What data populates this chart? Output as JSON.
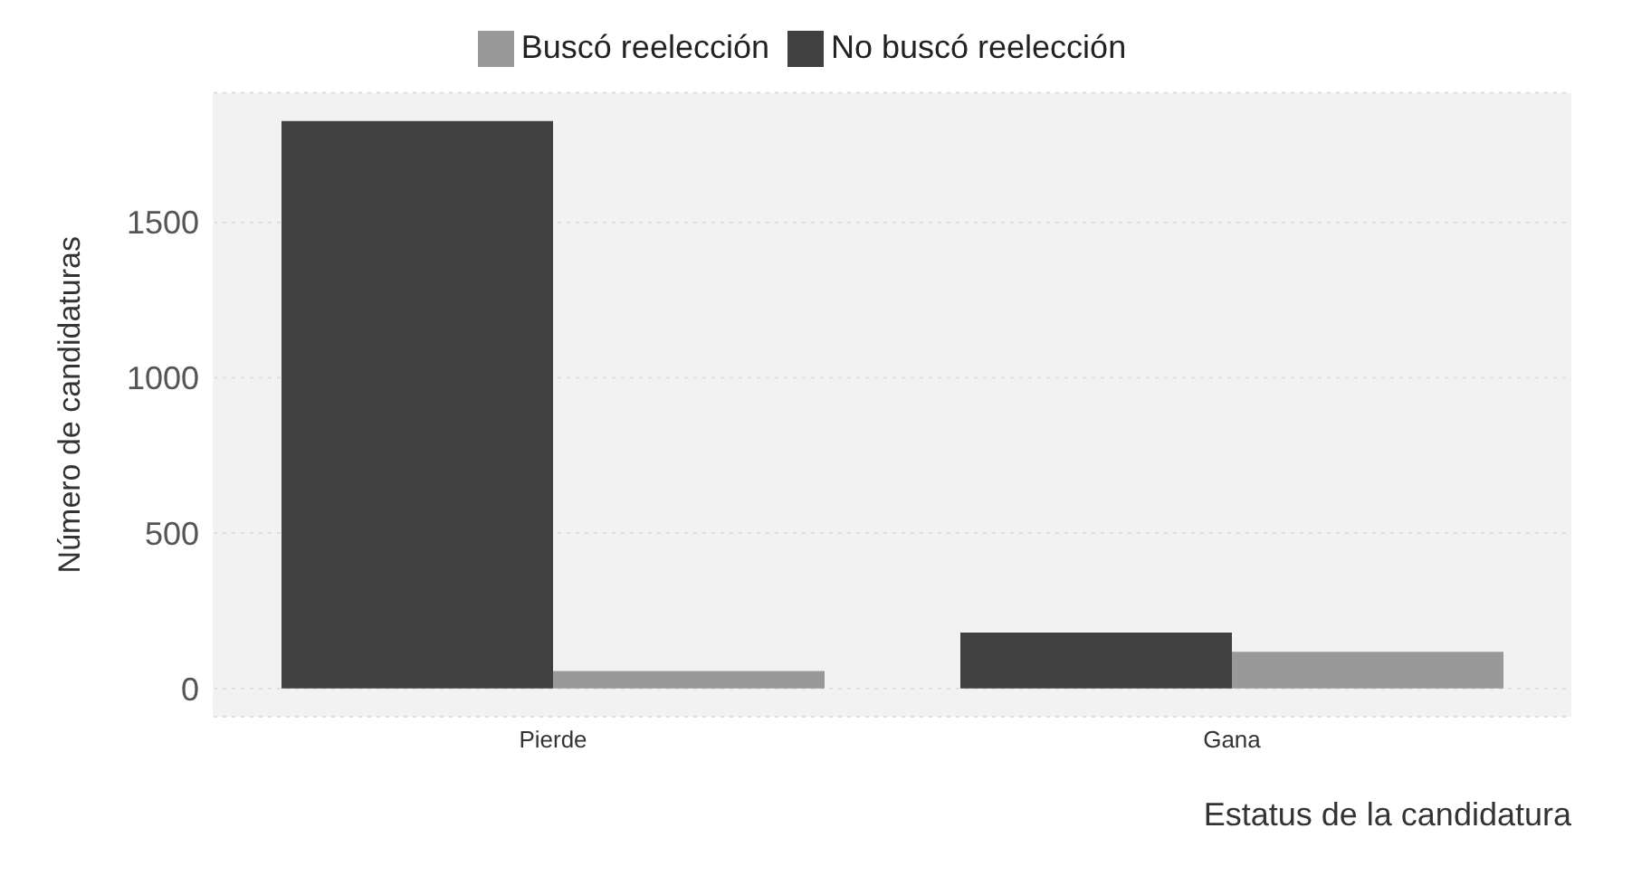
{
  "chart_data": {
    "type": "bar",
    "xlabel": "Estatus de la candidatura",
    "ylabel": "Número de candidaturas",
    "categories": [
      "Pierde",
      "Gana"
    ],
    "series": [
      {
        "name": "No buscó reelección",
        "color": "#404040",
        "values": [
          1826,
          180
        ]
      },
      {
        "name": "Buscó reelección",
        "color": "#999999",
        "values": [
          56,
          118
        ]
      }
    ],
    "ylim": [
      -91,
      1917
    ],
    "yticks": [
      0,
      500,
      1000,
      1500
    ],
    "grid": "y",
    "legend": "top"
  }
}
